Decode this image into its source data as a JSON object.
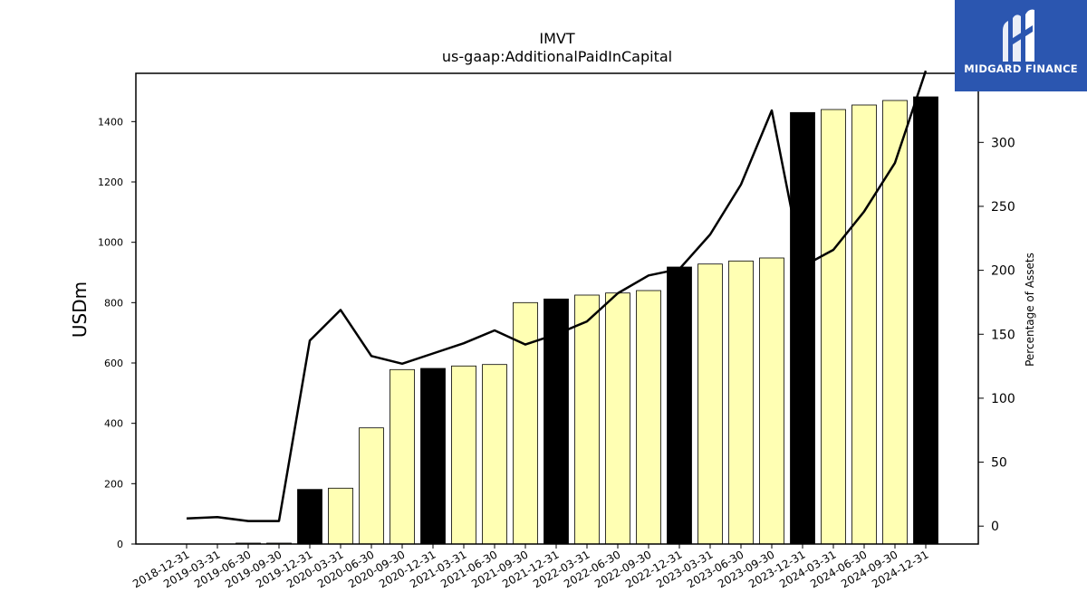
{
  "chart_data": {
    "type": "bar",
    "title": "IMVT",
    "subtitle": "us-gaap:AdditionalPaidInCapital",
    "ylabel": "USDm",
    "y2label": "Percentage of Assets",
    "ylim": [
      0,
      1560
    ],
    "y2lim": [
      -14,
      354
    ],
    "yticks": [
      0,
      200,
      400,
      600,
      800,
      1000,
      1200,
      1400
    ],
    "y2ticks": [
      0,
      50,
      100,
      150,
      200,
      250,
      300
    ],
    "grid": false,
    "categories": [
      "2018-12-31",
      "2019-03-31",
      "2019-06-30",
      "2019-09-30",
      "2019-12-31",
      "2020-03-31",
      "2020-06-30",
      "2020-09-30",
      "2020-12-31",
      "2021-03-31",
      "2021-06-30",
      "2021-09-30",
      "2021-12-31",
      "2022-03-31",
      "2022-06-30",
      "2022-09-30",
      "2022-12-31",
      "2023-03-31",
      "2023-06-30",
      "2023-09-30",
      "2023-12-31",
      "2024-03-31",
      "2024-06-30",
      "2024-09-30",
      "2024-12-31"
    ],
    "series": [
      {
        "kind": "bar",
        "axis": "left",
        "values": [
          0,
          0,
          3,
          3,
          181,
          185,
          385,
          578,
          582,
          590,
          595,
          800,
          812,
          825,
          832,
          840,
          918,
          928,
          938,
          948,
          1430,
          1440,
          1455,
          1470,
          1482
        ],
        "year_end_color": "#000000",
        "quarter_color": "#ffffb3"
      },
      {
        "kind": "line",
        "axis": "right",
        "color": "#000000",
        "values": [
          6,
          7,
          4,
          4,
          145,
          169,
          133,
          127,
          135,
          143,
          153,
          142,
          150,
          160,
          182,
          196,
          201,
          228,
          267,
          325,
          203,
          216,
          246,
          284,
          356
        ]
      }
    ]
  },
  "branding": {
    "name": "MIDGARD FINANCE",
    "background": "#2b56b0"
  }
}
